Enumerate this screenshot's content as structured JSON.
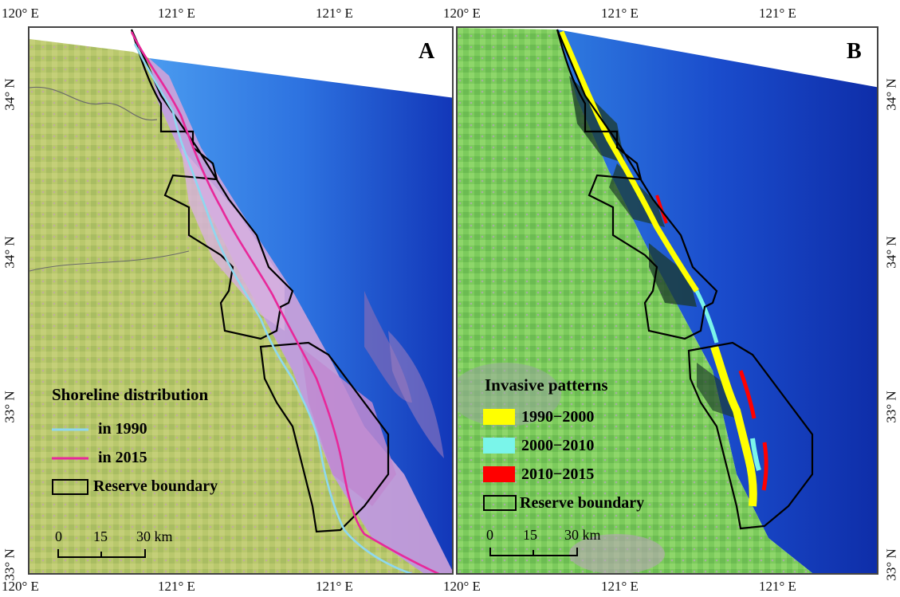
{
  "axis_labels": {
    "top": [
      "120° E",
      "121° E",
      "121° E",
      "120° E",
      "121° E",
      "121° E"
    ],
    "bottom": [
      "120° E",
      "121° E",
      "121° E",
      "120° E",
      "121° E",
      "121° E"
    ],
    "left": [
      "34° N",
      "34° N",
      "33° N",
      "33° N"
    ],
    "right": [
      "34° N",
      "34° N",
      "33° N",
      "33° N"
    ]
  },
  "panel_a": {
    "letter": "A",
    "legend_title": "Shoreline distribution",
    "legend_items": [
      {
        "label": "in 1990",
        "color": "#8ed8f0",
        "symbol": "line"
      },
      {
        "label": "in 2015",
        "color": "#e8289a",
        "symbol": "line"
      },
      {
        "label": "Reserve boundary",
        "color": "#000000",
        "symbol": "box"
      }
    ],
    "scale": {
      "labels": [
        "0",
        "15",
        "30 km"
      ]
    }
  },
  "panel_b": {
    "letter": "B",
    "legend_title": "Invasive patterns",
    "legend_items": [
      {
        "label": "1990−2000",
        "color": "#ffff00",
        "symbol": "patch"
      },
      {
        "label": "2000−2010",
        "color": "#7af5ea",
        "symbol": "patch"
      },
      {
        "label": "2010−2015",
        "color": "#ff0000",
        "symbol": "patch"
      },
      {
        "label": "Reserve boundary",
        "color": "#000000",
        "symbol": "box"
      }
    ],
    "scale": {
      "labels": [
        "0",
        "15",
        "30 km"
      ]
    }
  },
  "colors": {
    "sea_deep": "#1235c0",
    "sea_light": "#3a86e8",
    "land_a": "#b8c76a",
    "land_b": "#7cc95a",
    "tidal_flat": "#c88ed0"
  }
}
